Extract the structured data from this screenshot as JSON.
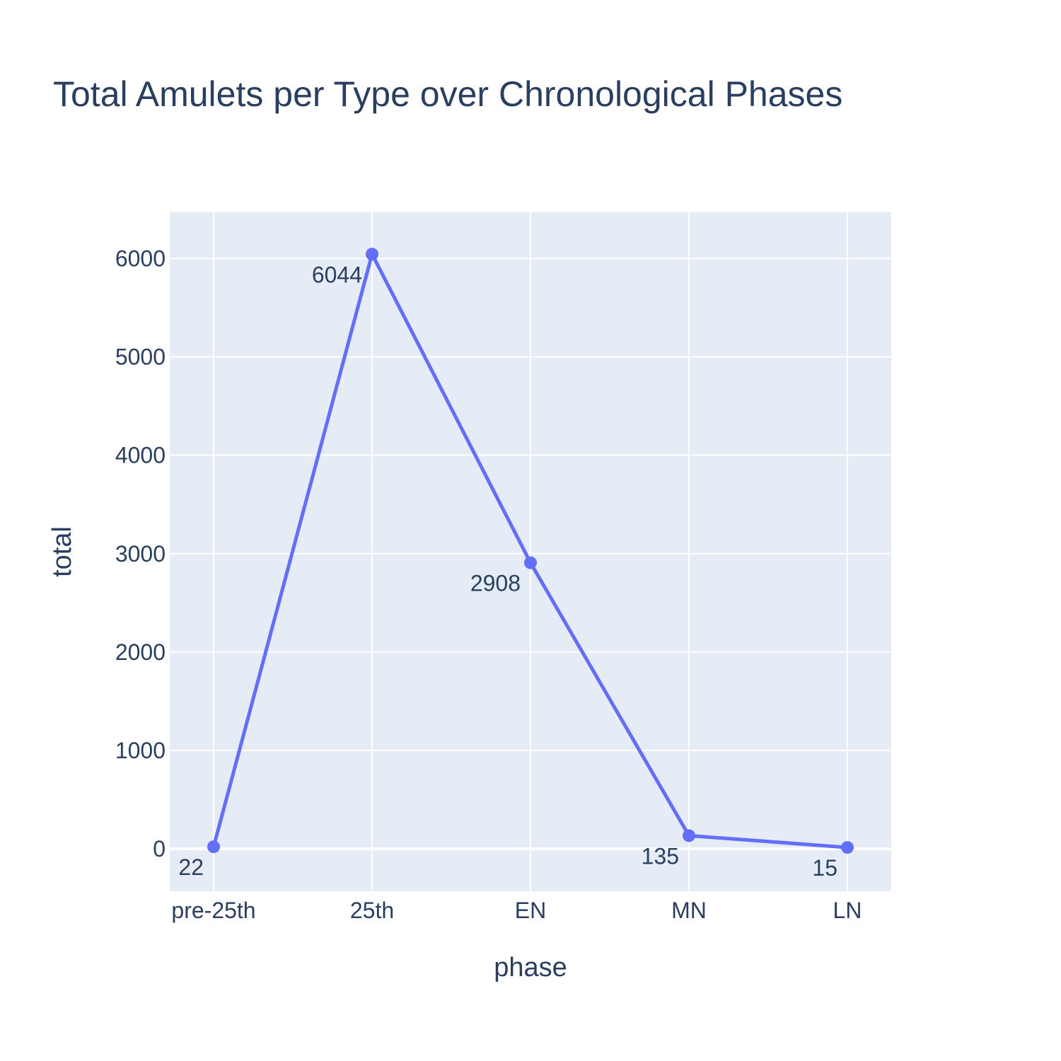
{
  "chart_data": {
    "type": "line",
    "title": "Total Amulets per Type over Chronological Phases",
    "xlabel": "phase",
    "ylabel": "total",
    "categories": [
      "pre-25th",
      "25th",
      "EN",
      "MN",
      "LN"
    ],
    "series": [
      {
        "values": [
          22,
          6044,
          2908,
          135,
          15
        ],
        "color": "#636efa"
      }
    ],
    "data_labels": [
      "22",
      "6044",
      "2908",
      "135",
      "15"
    ],
    "data_label_position": "bottom left",
    "ylim": [
      -430,
      6470
    ],
    "yticks": [
      0,
      1000,
      2000,
      3000,
      4000,
      5000,
      6000
    ],
    "ytick_labels": [
      "0",
      "1000",
      "2000",
      "3000",
      "4000",
      "5000",
      "6000"
    ],
    "grid": true,
    "legend": false,
    "plot_background": "#e5ecf6",
    "grid_color": "#ffffff",
    "text_color": "#2a3f5f"
  }
}
